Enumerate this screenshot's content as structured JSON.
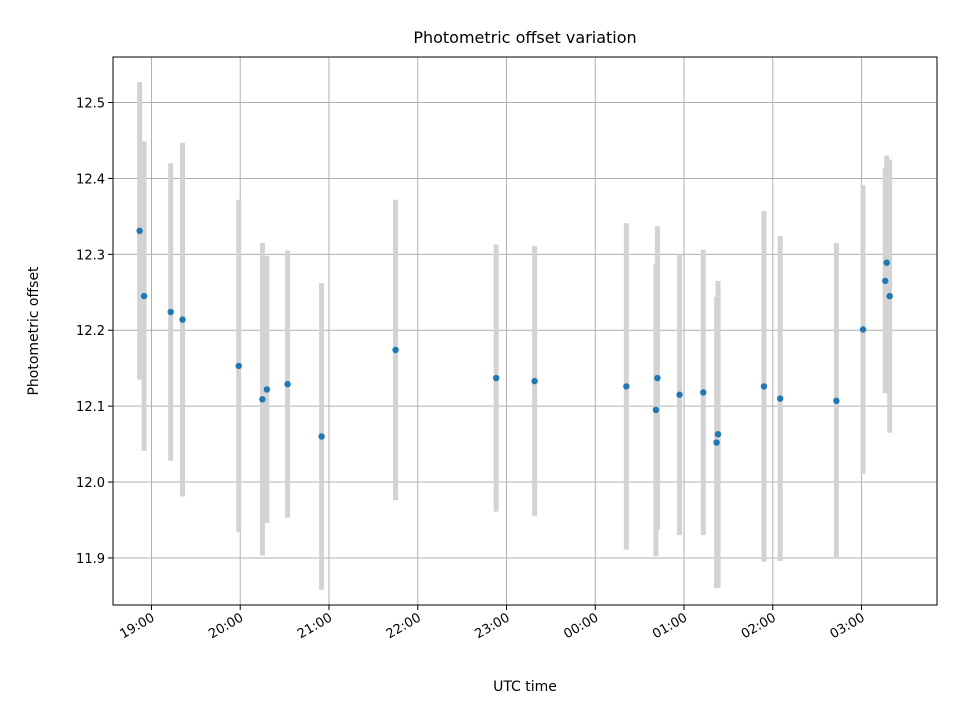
{
  "chart_data": {
    "type": "scatter",
    "title": "Photometric offset variation",
    "xlabel": "UTC time",
    "ylabel": "Photometric offset",
    "x_tick_labels": [
      "19:00",
      "20:00",
      "21:00",
      "22:00",
      "23:00",
      "00:00",
      "01:00",
      "02:00",
      "03:00"
    ],
    "y_tick_labels": [
      "11.9",
      "12.0",
      "12.1",
      "12.2",
      "12.3",
      "12.4",
      "12.5"
    ],
    "y_ticks": [
      11.9,
      12.0,
      12.1,
      12.2,
      12.3,
      12.4,
      12.5
    ],
    "xlim": [
      "18:34",
      "03:51"
    ],
    "ylim": [
      11.838,
      12.56
    ],
    "grid": true,
    "colors": {
      "points": "#1f77b4",
      "error_bars": "#d3d3d3",
      "grid": "#b0b0b0"
    },
    "points": [
      {
        "t": "18:52",
        "y": 12.331,
        "err": 0.196
      },
      {
        "t": "18:55",
        "y": 12.245,
        "err": 0.204
      },
      {
        "t": "19:13",
        "y": 12.224,
        "err": 0.196
      },
      {
        "t": "19:21",
        "y": 12.214,
        "err": 0.233
      },
      {
        "t": "19:59",
        "y": 12.153,
        "err": 0.219
      },
      {
        "t": "20:15",
        "y": 12.109,
        "err": 0.206
      },
      {
        "t": "20:18",
        "y": 12.122,
        "err": 0.176
      },
      {
        "t": "20:32",
        "y": 12.129,
        "err": 0.176
      },
      {
        "t": "20:55",
        "y": 12.06,
        "err": 0.202
      },
      {
        "t": "21:45",
        "y": 12.174,
        "err": 0.198
      },
      {
        "t": "22:53",
        "y": 12.137,
        "err": 0.176
      },
      {
        "t": "23:19",
        "y": 12.133,
        "err": 0.178
      },
      {
        "t": "00:21",
        "y": 12.126,
        "err": 0.215
      },
      {
        "t": "00:41",
        "y": 12.095,
        "err": 0.193
      },
      {
        "t": "00:42",
        "y": 12.137,
        "err": 0.2
      },
      {
        "t": "00:57",
        "y": 12.115,
        "err": 0.185
      },
      {
        "t": "01:13",
        "y": 12.118,
        "err": 0.188
      },
      {
        "t": "01:22",
        "y": 12.052,
        "err": 0.192
      },
      {
        "t": "01:23",
        "y": 12.063,
        "err": 0.202
      },
      {
        "t": "01:54",
        "y": 12.126,
        "err": 0.231
      },
      {
        "t": "02:05",
        "y": 12.11,
        "err": 0.214
      },
      {
        "t": "02:43",
        "y": 12.107,
        "err": 0.208
      },
      {
        "t": "03:01",
        "y": 12.201,
        "err": 0.19
      },
      {
        "t": "03:16",
        "y": 12.265,
        "err": 0.148
      },
      {
        "t": "03:17",
        "y": 12.289,
        "err": 0.141
      },
      {
        "t": "03:19",
        "y": 12.245,
        "err": 0.18
      }
    ]
  }
}
